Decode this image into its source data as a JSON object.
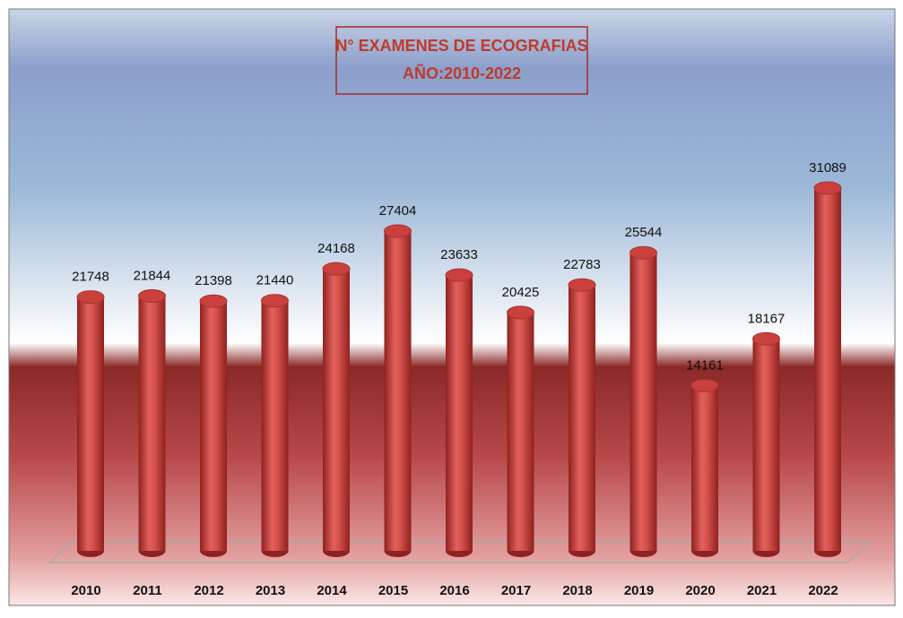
{
  "chart_data": {
    "type": "bar",
    "title": "N° EXAMENES DE ECOGRAFIAS",
    "subtitle": "AÑO:2010-2022",
    "categories": [
      "2010",
      "2011",
      "2012",
      "2013",
      "2014",
      "2015",
      "2016",
      "2017",
      "2018",
      "2019",
      "2020",
      "2021",
      "2022"
    ],
    "values": [
      21748,
      21844,
      21398,
      21440,
      24168,
      27404,
      23633,
      20425,
      22783,
      25544,
      14161,
      18167,
      31089
    ],
    "color": "#c9403c"
  }
}
